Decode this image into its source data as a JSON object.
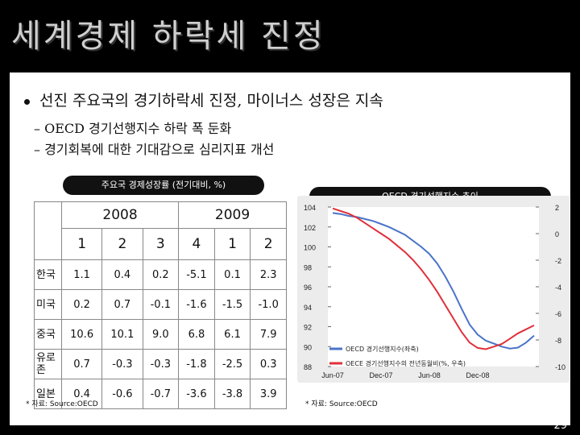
{
  "slide": {
    "title": "세계경제 하락세 진정",
    "bullet": "선진 주요국의 경기하락세 진정, 마이너스 성장은 지속",
    "subs": [
      "– OECD 경기선행지수 하락 폭 둔화",
      "– 경기회복에 대한 기대감으로 심리지표 개선"
    ],
    "page_number": "29"
  },
  "table": {
    "caption": "주요국 경제성장률 (전기대비, %)",
    "years": [
      "2008",
      "2009"
    ],
    "quarters": [
      "1",
      "2",
      "3",
      "4",
      "1",
      "2"
    ],
    "rows": [
      {
        "country": "한국",
        "values": [
          "1.1",
          "0.4",
          "0.2",
          "-5.1",
          "0.1",
          "2.3"
        ]
      },
      {
        "country": "미국",
        "values": [
          "0.2",
          "0.7",
          "-0.1",
          "-1.6",
          "-1.5",
          "-1.0"
        ]
      },
      {
        "country": "중국",
        "values": [
          "10.6",
          "10.1",
          "9.0",
          "6.8",
          "6.1",
          "7.9"
        ]
      },
      {
        "country": "유로존",
        "values": [
          "0.7",
          "-0.3",
          "-0.3",
          "-1.8",
          "-2.5",
          "0.3"
        ]
      },
      {
        "country": "일본",
        "values": [
          "0.4",
          "-0.6",
          "-0.7",
          "-3.6",
          "-3.8",
          "3.9"
        ]
      }
    ],
    "source": "* 자료: Source:OECD"
  },
  "chart_data": {
    "type": "line",
    "title": "OECD 경기선행지수 추이",
    "x_ticks": [
      "Jun-07",
      "Dec-07",
      "Jun-08",
      "Dec-08"
    ],
    "y_left": {
      "ticks": [
        104,
        102,
        100,
        98,
        96,
        94,
        92,
        90,
        88
      ],
      "range": [
        88,
        104
      ]
    },
    "y_right": {
      "ticks": [
        2,
        0,
        -2,
        -4,
        -6,
        -8,
        -10
      ],
      "range": [
        -10,
        2
      ]
    },
    "series": [
      {
        "name": "OECD 경기선행지수(좌축)",
        "axis": "left",
        "color": "#4a74c9",
        "values": [
          103.4,
          103.3,
          103.1,
          103.0,
          102.8,
          102.6,
          102.3,
          102.0,
          101.6,
          101.2,
          100.6,
          100.0,
          99.3,
          98.3,
          97.0,
          95.5,
          93.8,
          92.2,
          91.2,
          90.6,
          90.3,
          90.0,
          89.8,
          89.9,
          90.4,
          91.1
        ]
      },
      {
        "name": "OECE 경기선행지수의 전년동월비(%, 우축)",
        "axis": "right",
        "color": "#e0303a",
        "values": [
          1.9,
          1.7,
          1.5,
          1.2,
          0.8,
          0.4,
          0.0,
          -0.4,
          -0.9,
          -1.4,
          -2.0,
          -2.7,
          -3.5,
          -4.4,
          -5.4,
          -6.4,
          -7.4,
          -8.2,
          -8.6,
          -8.7,
          -8.5,
          -8.3,
          -7.9,
          -7.5,
          -7.2,
          -6.9
        ]
      }
    ],
    "source": "* 자료: Source:OECD"
  }
}
